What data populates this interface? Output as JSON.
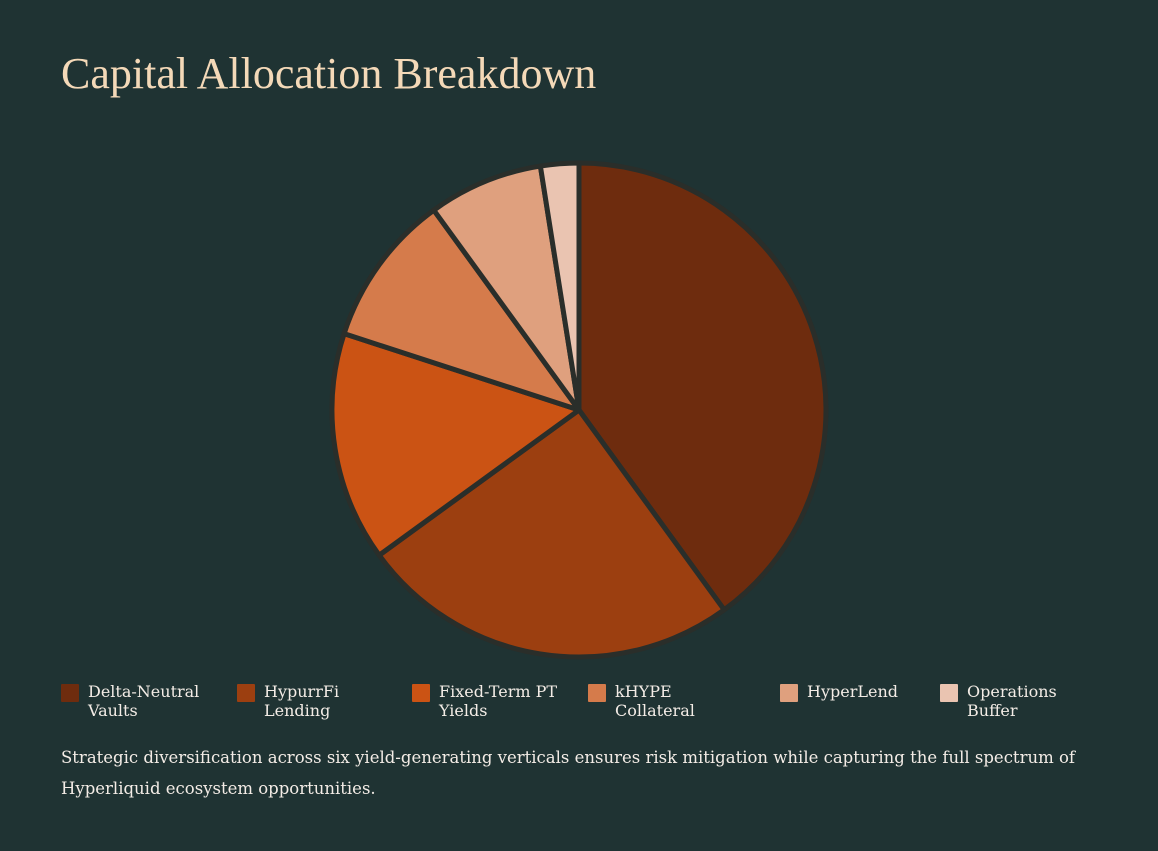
{
  "title": "Capital Allocation Breakdown",
  "caption": "Strategic diversification across six yield-generating verticals ensures risk mitigation while capturing the full spectrum of Hyperliquid ecosystem opportunities.",
  "chart_data": {
    "type": "pie",
    "title": "Capital Allocation Breakdown",
    "legend_position": "bottom",
    "categories": [
      "Delta-Neutral Vaults",
      "HypurrFi Lending",
      "Fixed-Term PT Yields",
      "kHYPE Collateral",
      "HyperLend",
      "Operations Buffer"
    ],
    "values": [
      40,
      25,
      15,
      10,
      7.5,
      2.5
    ],
    "colors": [
      "#6e2c0e",
      "#9c3f10",
      "#cb5314",
      "#d57b4b",
      "#dfa07e",
      "#eac4b1"
    ],
    "slice_border_color": "#2a2e2a"
  },
  "legend": [
    {
      "label": "Delta-Neutral\nVaults",
      "color": "#6e2c0e"
    },
    {
      "label": "HypurrFi\nLending",
      "color": "#9c3f10"
    },
    {
      "label": "Fixed-Term PT\nYields",
      "color": "#cb5314"
    },
    {
      "label": "kHYPE\nCollateral",
      "color": "#d57b4b"
    },
    {
      "label": "HyperLend",
      "color": "#dfa07e"
    },
    {
      "label": "Operations\nBuffer",
      "color": "#eac4b1"
    }
  ]
}
